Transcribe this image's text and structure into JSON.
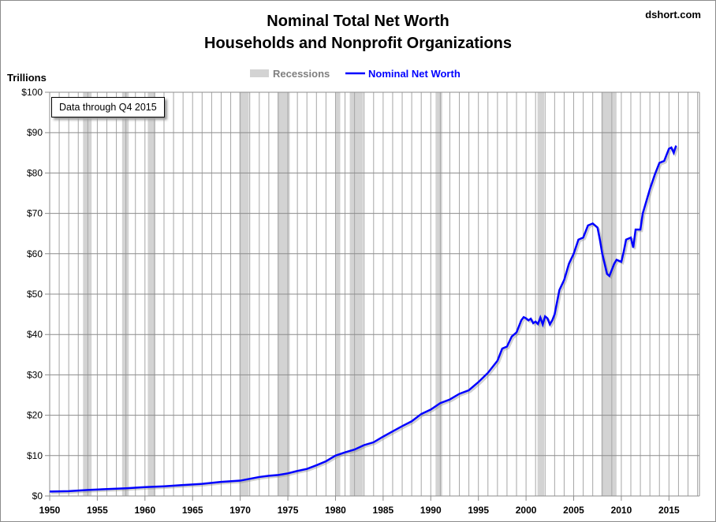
{
  "chart_data": {
    "type": "line",
    "title": "Nominal Total Net Worth",
    "subtitle": "Households and Nonprofit Organizations",
    "source": "dshort.com",
    "ylabel": "Trillions",
    "annotation": "Data through Q4 2015",
    "xlim": [
      1950,
      2018.2
    ],
    "ylim": [
      0,
      100
    ],
    "grid": true,
    "legend_position": "top-center",
    "x_ticks": [
      1950,
      1955,
      1960,
      1965,
      1970,
      1975,
      1980,
      1985,
      1990,
      1995,
      2000,
      2005,
      2010,
      2015
    ],
    "y_ticks": [
      0,
      10,
      20,
      30,
      40,
      50,
      60,
      70,
      80,
      90,
      100
    ],
    "y_tick_labels": [
      "$0",
      "$10",
      "$20",
      "$30",
      "$40",
      "$50",
      "$60",
      "$70",
      "$80",
      "$90",
      "$100"
    ],
    "legend": [
      {
        "name": "Recessions",
        "color": "#d3d3d3"
      },
      {
        "name": "Nominal Net Worth",
        "color": "#0000ff"
      }
    ],
    "recessions": [
      [
        1953.5,
        1954.4
      ],
      [
        1957.6,
        1958.3
      ],
      [
        1960.3,
        1961.1
      ],
      [
        1969.9,
        1970.9
      ],
      [
        1973.9,
        1975.2
      ],
      [
        1980.0,
        1980.5
      ],
      [
        1981.5,
        1982.9
      ],
      [
        1990.5,
        1991.2
      ],
      [
        2001.2,
        2001.9
      ],
      [
        2007.9,
        2009.5
      ]
    ],
    "series": [
      {
        "name": "Nominal Net Worth",
        "color": "#0000ff",
        "x": [
          1950,
          1952,
          1954,
          1956,
          1958,
          1960,
          1962,
          1964,
          1966,
          1968,
          1970,
          1972,
          1973,
          1974,
          1975,
          1976,
          1977,
          1978,
          1979,
          1980,
          1981,
          1982,
          1983,
          1984,
          1985,
          1986,
          1987,
          1988,
          1989,
          1990,
          1991,
          1992,
          1993,
          1994,
          1995,
          1996,
          1997,
          1997.5,
          1998,
          1998.5,
          1999,
          1999.5,
          1999.75,
          2000,
          2000.25,
          2000.5,
          2000.75,
          2001,
          2001.25,
          2001.5,
          2001.75,
          2002,
          2002.25,
          2002.5,
          2002.75,
          2003,
          2003.5,
          2004,
          2004.5,
          2005,
          2005.5,
          2006,
          2006.5,
          2007,
          2007.5,
          2007.75,
          2008,
          2008.5,
          2008.75,
          2009,
          2009.25,
          2009.5,
          2010,
          2010.25,
          2010.5,
          2011,
          2011.25,
          2011.5,
          2012,
          2012.25,
          2013,
          2013.5,
          2014,
          2014.5,
          2015,
          2015.25,
          2015.5,
          2015.75
        ],
        "y": [
          1.1,
          1.2,
          1.5,
          1.7,
          1.9,
          2.2,
          2.4,
          2.7,
          3.0,
          3.5,
          3.8,
          4.7,
          5.0,
          5.2,
          5.6,
          6.2,
          6.7,
          7.6,
          8.6,
          10.0,
          10.8,
          11.5,
          12.6,
          13.3,
          14.7,
          16.0,
          17.3,
          18.5,
          20.3,
          21.4,
          23.0,
          23.9,
          25.3,
          26.2,
          28.2,
          30.5,
          33.5,
          36.5,
          37.0,
          39.5,
          40.5,
          43.5,
          44.3,
          44.0,
          43.5,
          43.9,
          42.8,
          43.2,
          42.6,
          44.2,
          42.5,
          44.5,
          44.0,
          42.5,
          43.5,
          45.0,
          51.0,
          53.5,
          57.5,
          60.0,
          63.5,
          64.0,
          67.0,
          67.5,
          66.5,
          63.5,
          60.0,
          55.0,
          54.5,
          56.0,
          57.5,
          58.5,
          58.0,
          60.5,
          63.5,
          64.0,
          61.5,
          66.0,
          66.0,
          70.0,
          76.0,
          79.5,
          82.5,
          83.0,
          86.0,
          86.3,
          85.0,
          86.8
        ]
      }
    ]
  }
}
